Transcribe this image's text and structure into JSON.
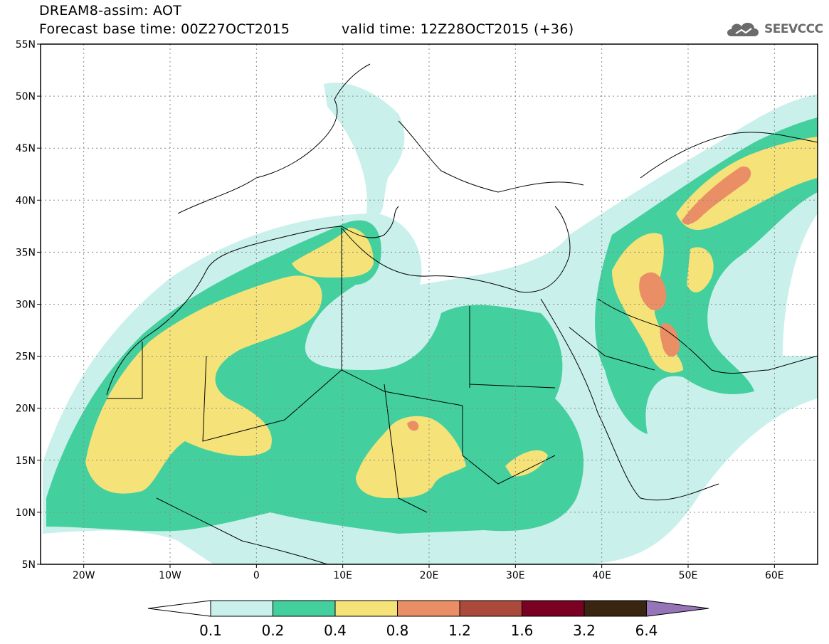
{
  "header": {
    "title_line1": "DREAM8-assim: AOT",
    "title_line2": "Forecast base time: 00Z27OCT2015",
    "valid_time": "valid time: 12Z28OCT2015 (+36)"
  },
  "logo": {
    "text": "SEEVCCC",
    "icon": "cloud-logo-icon"
  },
  "map": {
    "lon_range": [
      -25,
      65
    ],
    "lat_range": [
      5,
      55
    ],
    "lat_labels": [
      "55N",
      "50N",
      "45N",
      "40N",
      "35N",
      "30N",
      "25N",
      "20N",
      "15N",
      "10N",
      "5N"
    ],
    "lat_values": [
      55,
      50,
      45,
      40,
      35,
      30,
      25,
      20,
      15,
      10,
      5
    ],
    "lon_labels": [
      "20W",
      "10W",
      "0",
      "10E",
      "20E",
      "30E",
      "40E",
      "50E",
      "60E"
    ],
    "lon_values": [
      -20,
      -10,
      0,
      10,
      20,
      30,
      40,
      50,
      60
    ],
    "grid": true
  },
  "legend": {
    "colors": [
      "#ffffff",
      "#c9f0eb",
      "#44cf9e",
      "#f5e37a",
      "#ea8f65",
      "#ab4a3c",
      "#7a0024",
      "#3a2512",
      "#9575b8"
    ],
    "labels": [
      "0.1",
      "0.2",
      "0.4",
      "0.8",
      "1.2",
      "1.6",
      "3.2",
      "6.4"
    ]
  }
}
